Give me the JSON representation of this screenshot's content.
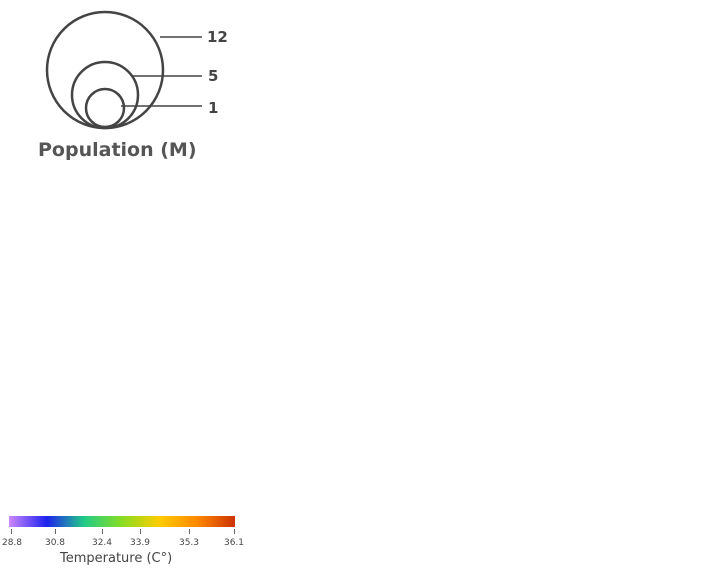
{
  "size_legend": {
    "title": "Population (M)",
    "values": [
      "12",
      "5",
      "1"
    ]
  },
  "color_legend": {
    "title": "Temperature (C°)",
    "ticks": [
      "28.8",
      "30.8",
      "32.4",
      "33.9",
      "35.3",
      "36.1"
    ],
    "gradient_stops": [
      "#cc88ff",
      "#1e22ee",
      "#22cc88",
      "#88dd22",
      "#ffcc00",
      "#ff8800",
      "#cc3300"
    ]
  },
  "colors": {
    "circle_stroke": "#444444",
    "text": "#555555"
  }
}
